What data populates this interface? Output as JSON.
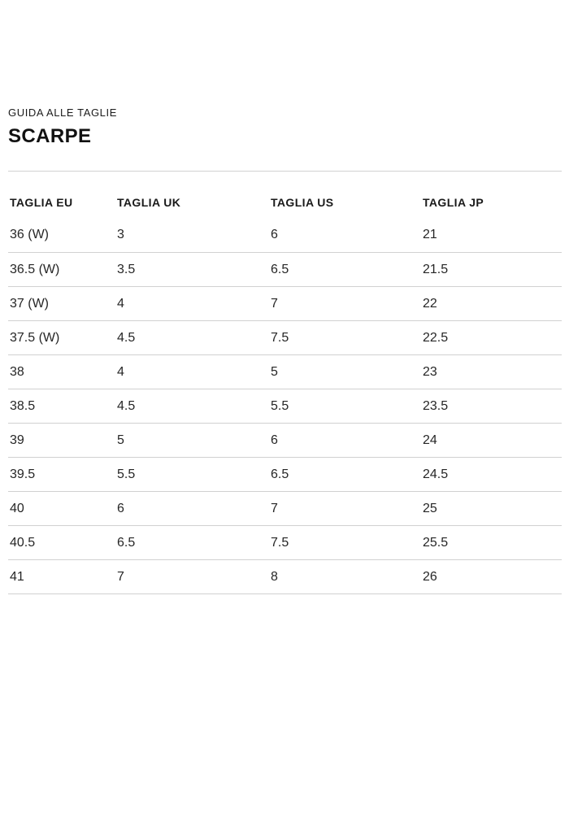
{
  "header": {
    "eyebrow": "GUIDA ALLE TAGLIE",
    "title": "SCARPE"
  },
  "table": {
    "columns": [
      "TAGLIA EU",
      "TAGLIA UK",
      "TAGLIA US",
      "TAGLIA JP"
    ],
    "rows": [
      [
        "36 (W)",
        "3",
        "6",
        "21"
      ],
      [
        "36.5 (W)",
        "3.5",
        "6.5",
        "21.5"
      ],
      [
        "37 (W)",
        "4",
        "7",
        "22"
      ],
      [
        "37.5 (W)",
        "4.5",
        "7.5",
        "22.5"
      ],
      [
        "38",
        "4",
        "5",
        "23"
      ],
      [
        "38.5",
        "4.5",
        "5.5",
        "23.5"
      ],
      [
        "39",
        "5",
        "6",
        "24"
      ],
      [
        "39.5",
        "5.5",
        "6.5",
        "24.5"
      ],
      [
        "40",
        "6",
        "7",
        "25"
      ],
      [
        "40.5",
        "6.5",
        "7.5",
        "25.5"
      ],
      [
        "41",
        "7",
        "8",
        "26"
      ]
    ]
  },
  "colors": {
    "background": "#ffffff",
    "text": "#1f1f1f",
    "separator": "#d1d1d1"
  }
}
